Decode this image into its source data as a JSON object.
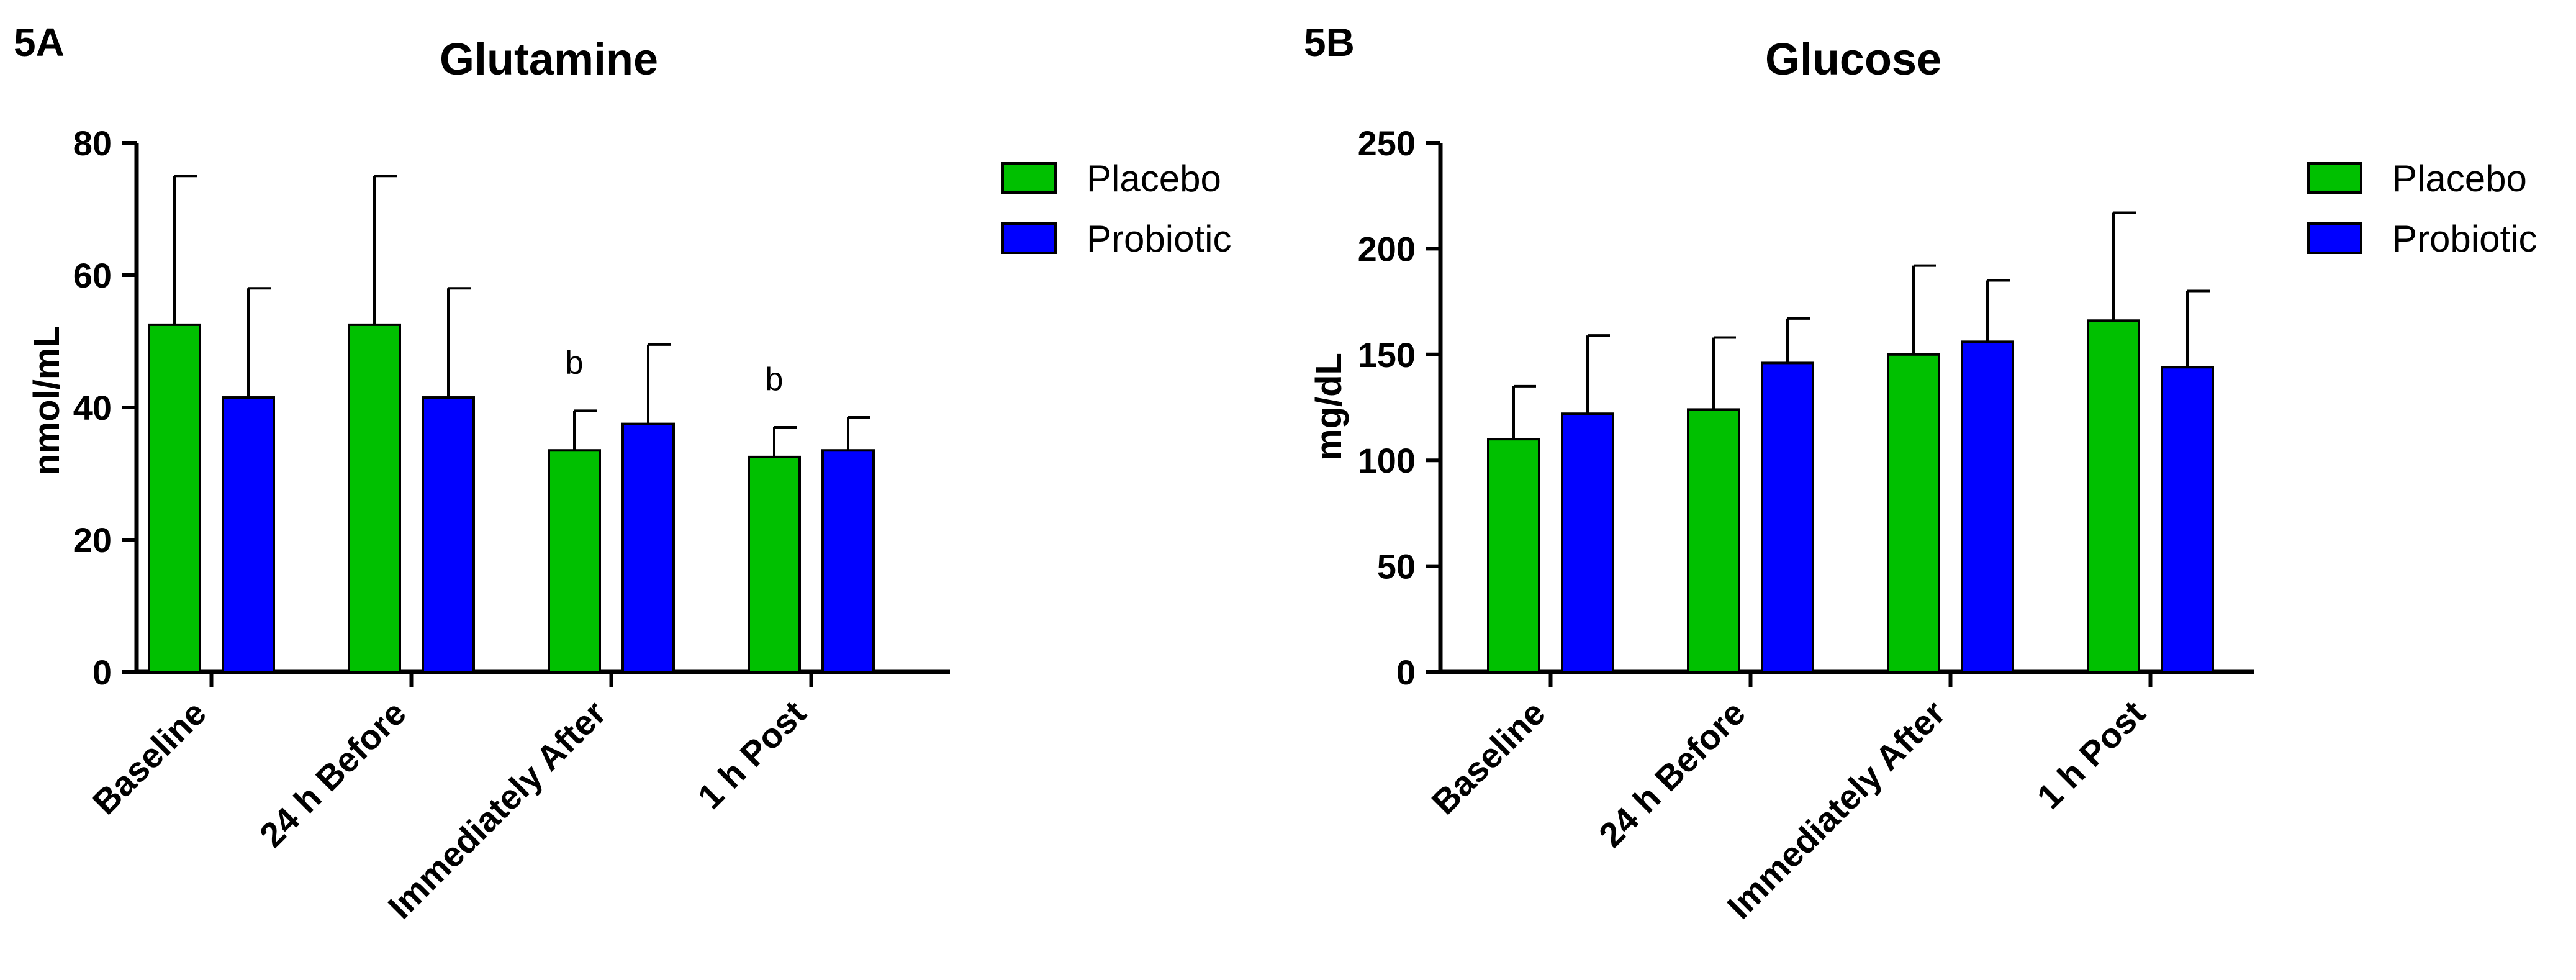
{
  "chart_data": [
    {
      "panel": "5A",
      "type": "bar",
      "title": "Glutamine",
      "xlabel": "",
      "ylabel": "nmol/mL",
      "ylim": [
        0,
        80
      ],
      "yticks": [
        0,
        20,
        40,
        60,
        80
      ],
      "grid": false,
      "legend_position": "top-right",
      "categories": [
        "Baseline",
        "24 h Before",
        "Immediately After",
        "1 h Post"
      ],
      "series": [
        {
          "name": "Placebo",
          "color": "#00c000",
          "values": [
            52.5,
            52.5,
            33.5,
            32.5
          ],
          "error": [
            22.5,
            22.5,
            6,
            4.5
          ]
        },
        {
          "name": "Probiotic",
          "color": "#0000ff",
          "values": [
            41.5,
            41.5,
            37.5,
            33.5
          ],
          "error": [
            16.5,
            16.5,
            12,
            5
          ]
        }
      ],
      "annotations": [
        {
          "text": "b",
          "category": "Immediately After",
          "series": "Placebo"
        },
        {
          "text": "b",
          "category": "1 h Post",
          "series": "Placebo"
        }
      ]
    },
    {
      "panel": "5B",
      "type": "bar",
      "title": "Glucose",
      "xlabel": "",
      "ylabel": "mg/dL",
      "ylim": [
        0,
        250
      ],
      "yticks": [
        0,
        50,
        100,
        150,
        200,
        250
      ],
      "grid": false,
      "legend_position": "top-right",
      "categories": [
        "Baseline",
        "24 h Before",
        "Immediately After",
        "1 h Post"
      ],
      "series": [
        {
          "name": "Placebo",
          "color": "#00c000",
          "values": [
            110,
            124,
            150,
            166
          ],
          "error": [
            25,
            34,
            42,
            51
          ]
        },
        {
          "name": "Probiotic",
          "color": "#0000ff",
          "values": [
            122,
            146,
            156,
            144
          ],
          "error": [
            37,
            21,
            29,
            36
          ]
        }
      ],
      "annotations": []
    }
  ]
}
